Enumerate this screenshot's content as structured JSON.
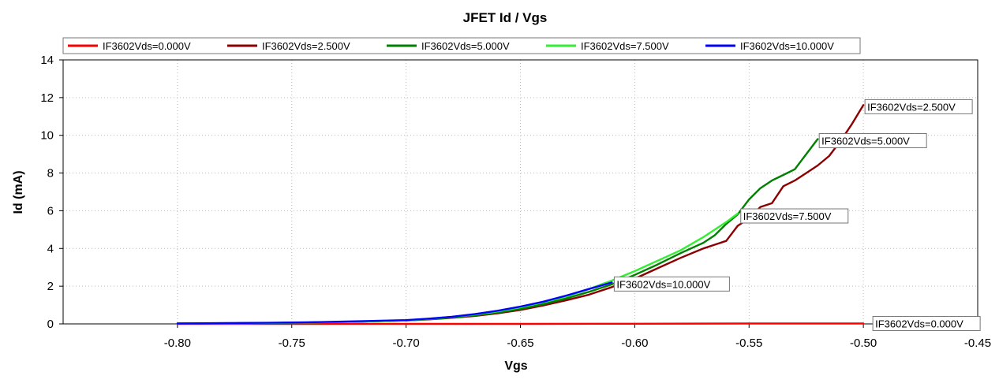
{
  "chart_data": {
    "type": "line",
    "title": "JFET Id / Vgs",
    "xlabel": "Vgs",
    "ylabel": "Id (mA)",
    "xlim": [
      -0.85,
      -0.45
    ],
    "ylim": [
      0,
      14
    ],
    "xticks": [
      -0.8,
      -0.75,
      -0.7,
      -0.65,
      -0.6,
      -0.55,
      -0.5,
      -0.45
    ],
    "xtick_labels": [
      "-0.80",
      "-0.75",
      "-0.70",
      "-0.65",
      "-0.60",
      "-0.55",
      "-0.50",
      "-0.45"
    ],
    "yticks": [
      0,
      2,
      4,
      6,
      8,
      10,
      12,
      14
    ],
    "ytick_labels": [
      "0",
      "2",
      "4",
      "6",
      "8",
      "10",
      "12",
      "14"
    ],
    "grid": true,
    "legend_position": "top",
    "series": [
      {
        "name": "IF3602Vds=0.000V",
        "color": "#ff0000",
        "x": [
          -0.8,
          -0.75,
          -0.7,
          -0.65,
          -0.6,
          -0.55,
          -0.5
        ],
        "y": [
          0,
          0,
          0,
          0,
          0.01,
          0.02,
          0.02
        ]
      },
      {
        "name": "IF3602Vds=2.500V",
        "color": "#8b0000",
        "x": [
          -0.8,
          -0.78,
          -0.76,
          -0.74,
          -0.72,
          -0.7,
          -0.69,
          -0.68,
          -0.67,
          -0.66,
          -0.65,
          -0.64,
          -0.63,
          -0.62,
          -0.61,
          -0.6,
          -0.59,
          -0.58,
          -0.57,
          -0.565,
          -0.56,
          -0.555,
          -0.55,
          -0.545,
          -0.54,
          -0.535,
          -0.53,
          -0.525,
          -0.52,
          -0.515,
          -0.51,
          -0.505,
          -0.5
        ],
        "y": [
          0.02,
          0.03,
          0.05,
          0.08,
          0.12,
          0.18,
          0.24,
          0.32,
          0.42,
          0.56,
          0.74,
          0.98,
          1.25,
          1.55,
          1.95,
          2.4,
          2.95,
          3.5,
          4.0,
          4.2,
          4.4,
          5.2,
          5.6,
          6.2,
          6.4,
          7.3,
          7.6,
          8.0,
          8.4,
          8.9,
          9.7,
          10.6,
          11.6
        ]
      },
      {
        "name": "IF3602Vds=5.000V",
        "color": "#008000",
        "x": [
          -0.8,
          -0.78,
          -0.76,
          -0.74,
          -0.72,
          -0.7,
          -0.69,
          -0.68,
          -0.67,
          -0.66,
          -0.65,
          -0.64,
          -0.63,
          -0.62,
          -0.61,
          -0.6,
          -0.59,
          -0.58,
          -0.57,
          -0.565,
          -0.56,
          -0.555,
          -0.55,
          -0.545,
          -0.54,
          -0.535,
          -0.53,
          -0.525,
          -0.52
        ],
        "y": [
          0.02,
          0.03,
          0.05,
          0.08,
          0.12,
          0.18,
          0.25,
          0.34,
          0.45,
          0.6,
          0.8,
          1.05,
          1.35,
          1.7,
          2.1,
          2.6,
          3.15,
          3.75,
          4.3,
          4.7,
          5.3,
          5.8,
          6.6,
          7.2,
          7.6,
          7.9,
          8.2,
          9.0,
          9.8
        ]
      },
      {
        "name": "IF3602Vds=7.500V",
        "color": "#33ee33",
        "x": [
          -0.8,
          -0.78,
          -0.76,
          -0.74,
          -0.72,
          -0.7,
          -0.69,
          -0.68,
          -0.67,
          -0.66,
          -0.65,
          -0.64,
          -0.63,
          -0.62,
          -0.61,
          -0.6,
          -0.59,
          -0.58,
          -0.57,
          -0.565,
          -0.56,
          -0.555
        ],
        "y": [
          0.02,
          0.03,
          0.05,
          0.08,
          0.12,
          0.19,
          0.27,
          0.37,
          0.5,
          0.66,
          0.88,
          1.15,
          1.45,
          1.85,
          2.3,
          2.8,
          3.35,
          3.9,
          4.6,
          5.0,
          5.4,
          5.85
        ]
      },
      {
        "name": "IF3602Vds=10.000V",
        "color": "#0000ff",
        "x": [
          -0.8,
          -0.78,
          -0.76,
          -0.74,
          -0.72,
          -0.7,
          -0.69,
          -0.68,
          -0.67,
          -0.66,
          -0.65,
          -0.64,
          -0.63,
          -0.62,
          -0.61
        ],
        "y": [
          0.02,
          0.04,
          0.06,
          0.09,
          0.14,
          0.2,
          0.28,
          0.38,
          0.52,
          0.7,
          0.92,
          1.18,
          1.5,
          1.85,
          2.2
        ]
      }
    ]
  }
}
